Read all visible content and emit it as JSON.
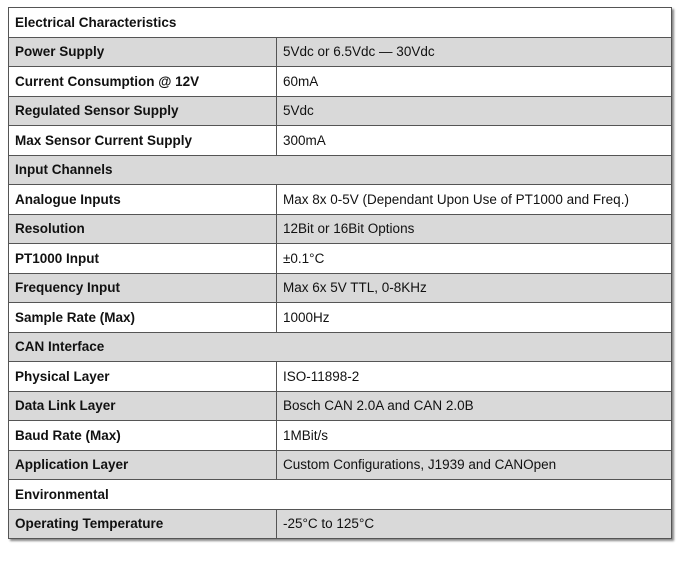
{
  "table": {
    "rows": [
      [
        "Electrical Characteristics"
      ],
      [
        "Power Supply",
        "5Vdc or 6.5Vdc — 30Vdc"
      ],
      [
        "Current Consumption @ 12V",
        "60mA"
      ],
      [
        "Regulated Sensor Supply",
        "5Vdc"
      ],
      [
        "Max Sensor Current Supply",
        "300mA"
      ],
      [
        "Input Channels"
      ],
      [
        "Analogue Inputs",
        "Max 8x 0-5V (Dependant Upon Use of PT1000 and Freq.)"
      ],
      [
        "Resolution",
        "12Bit or 16Bit Options"
      ],
      [
        "PT1000 Input",
        "±0.1°C"
      ],
      [
        "Frequency Input",
        "Max 6x 5V TTL, 0-8KHz"
      ],
      [
        "Sample Rate (Max)",
        "1000Hz"
      ],
      [
        "CAN Interface"
      ],
      [
        "Physical Layer",
        "ISO-11898-2"
      ],
      [
        "Data Link Layer",
        "Bosch CAN 2.0A and CAN 2.0B"
      ],
      [
        "Baud Rate (Max)",
        "1MBit/s"
      ],
      [
        "Application Layer",
        "Custom Configurations, J1939 and CANOpen"
      ],
      [
        "Environmental"
      ],
      [
        "Operating Temperature",
        "-25°C to 125°C"
      ]
    ]
  }
}
